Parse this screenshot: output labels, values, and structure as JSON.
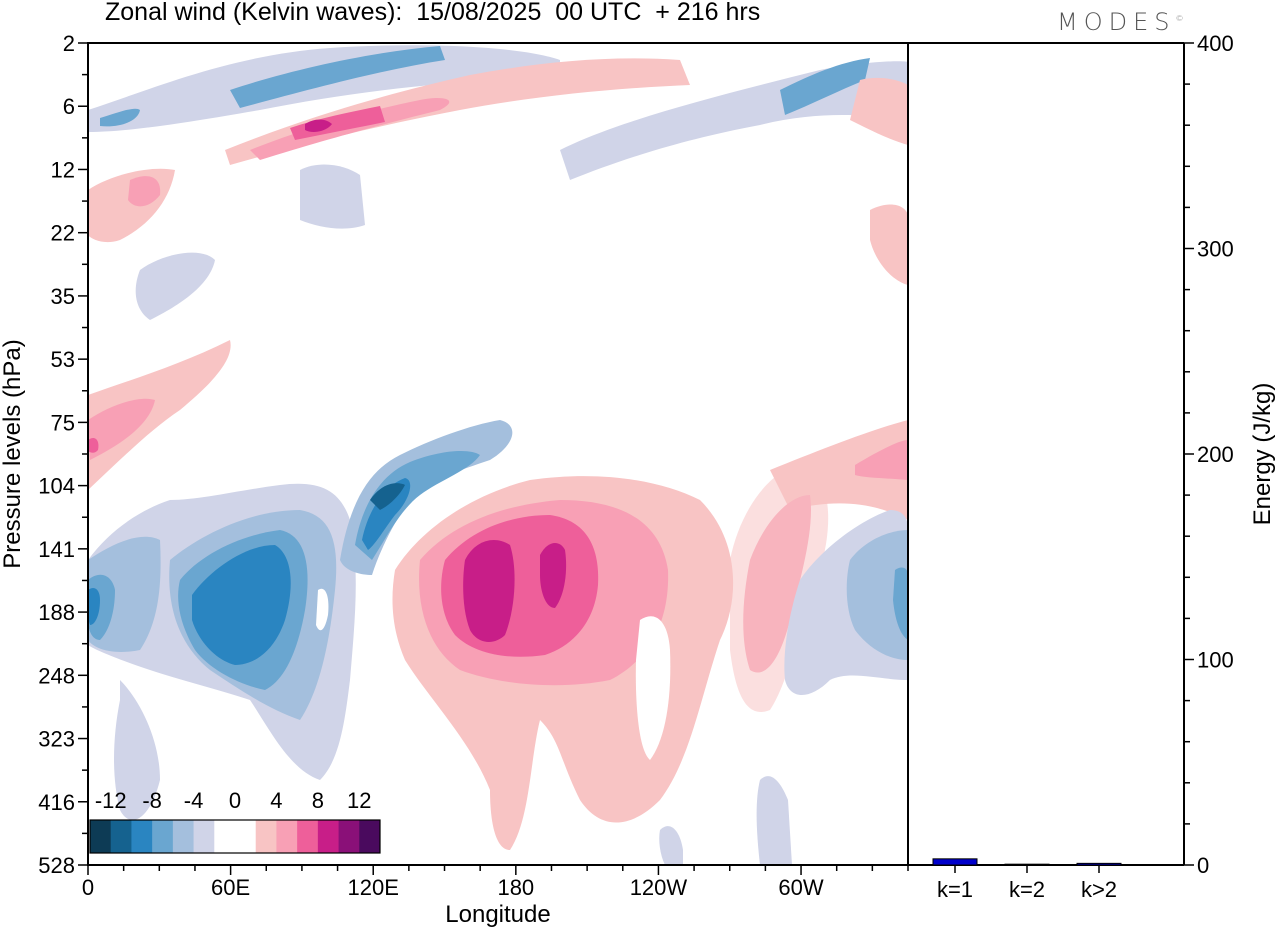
{
  "title": "Zonal wind (Kelvin waves):  15/08/2025  00 UTC  + 216 hrs",
  "brand": "MODES",
  "brand_mark": "©",
  "chart_data": [
    {
      "type": "heatmap",
      "xlabel": "Longitude",
      "ylabel": "Pressure levels (hPa)",
      "x_ticks": [
        "0",
        "60E",
        "120E",
        "180",
        "120W",
        "60W"
      ],
      "x_tick_values": [
        0,
        60,
        120,
        180,
        240,
        300
      ],
      "xlim": [
        0,
        345
      ],
      "y_ticks": [
        "2",
        "6",
        "12",
        "22",
        "35",
        "53",
        "75",
        "104",
        "141",
        "188",
        "248",
        "323",
        "416",
        "528"
      ],
      "y_scale": "pressure levels (one row per tick)",
      "colorbar": {
        "labels": [
          "-12",
          "-8",
          "-4",
          "0",
          "4",
          "8",
          "12"
        ],
        "colors": [
          "#0d3b55",
          "#15628f",
          "#2a85c1",
          "#6aa6d0",
          "#a4bfdd",
          "#d0d4e8",
          "#ffffff",
          "#ffffff",
          "#f8c4c4",
          "#f8a0b5",
          "#ee5f9a",
          "#c81e88",
          "#8a1078",
          "#4a0a5e"
        ],
        "placement": "bottom-left"
      },
      "regions": [
        {
          "sign": "negative",
          "lon": [
            0,
            25
          ],
          "pressure": "141-248",
          "min_value": -10
        },
        {
          "sign": "negative",
          "lon": [
            40,
            100
          ],
          "pressure": "104-248",
          "min_value": -11
        },
        {
          "sign": "negative",
          "lon": [
            115,
            150
          ],
          "pressure": "75-141",
          "min_value": -11
        },
        {
          "sign": "negative",
          "lon": [
            320,
            345
          ],
          "pressure": "104-248",
          "min_value": -9
        },
        {
          "sign": "negative",
          "lon": [
            0,
            345
          ],
          "pressure": "2-12",
          "min_value": -10
        },
        {
          "sign": "positive",
          "lon": [
            160,
            245
          ],
          "pressure": "104-323",
          "max_value": 11
        },
        {
          "sign": "positive",
          "lon": [
            280,
            310
          ],
          "pressure": "104-248",
          "max_value": 6
        },
        {
          "sign": "positive",
          "lon": [
            0,
            60
          ],
          "pressure": "53-104",
          "max_value": 6
        },
        {
          "sign": "positive",
          "lon": [
            320,
            345
          ],
          "pressure": "75-104",
          "max_value": 6
        },
        {
          "sign": "positive",
          "lon": [
            40,
            230
          ],
          "pressure": "2-12",
          "max_value": 10
        }
      ]
    },
    {
      "type": "bar",
      "categories": [
        "k=1",
        "k=2",
        "k>2"
      ],
      "values": [
        3,
        0.4,
        0.8
      ],
      "ylabel": "Energy (J/kg)",
      "ylim": [
        0,
        400
      ],
      "y_ticks": [
        "0",
        "100",
        "200",
        "300",
        "400"
      ],
      "colors": [
        "#0000cc",
        "#0000cc",
        "#0000cc"
      ]
    }
  ]
}
